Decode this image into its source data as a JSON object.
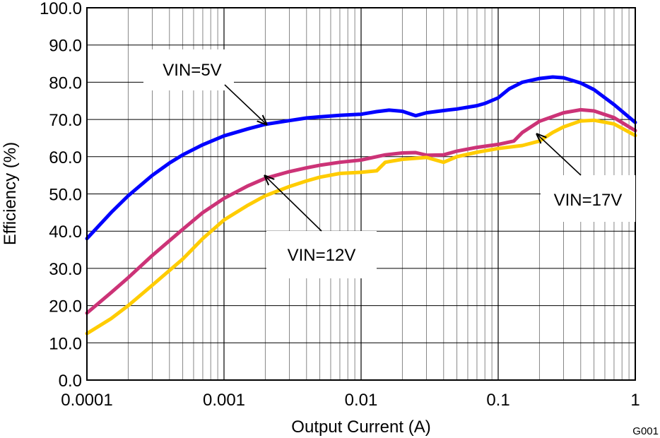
{
  "chart_data": {
    "type": "line",
    "title": "",
    "xlabel": "Output Current (A)",
    "ylabel": "Efficiency (%)",
    "xscale": "log",
    "xlim": [
      0.0001,
      1
    ],
    "ylim": [
      0,
      100
    ],
    "grid": true,
    "x_tick_labels": [
      "0.0001",
      "0.001",
      "0.01",
      "0.1",
      "1"
    ],
    "y_tick_labels": [
      "0.0",
      "10.0",
      "20.0",
      "30.0",
      "40.0",
      "50.0",
      "60.0",
      "70.0",
      "80.0",
      "90.0",
      "100.0"
    ],
    "figure_id": "G001",
    "series": [
      {
        "name": "VIN=5V",
        "color": "#0000ff",
        "points": [
          [
            0.0001,
            38
          ],
          [
            0.00015,
            45
          ],
          [
            0.0002,
            49.5
          ],
          [
            0.0003,
            55
          ],
          [
            0.0004,
            58.3
          ],
          [
            0.0005,
            60.5
          ],
          [
            0.0007,
            63.2
          ],
          [
            0.001,
            65.6
          ],
          [
            0.0015,
            67.5
          ],
          [
            0.002,
            68.7
          ],
          [
            0.003,
            69.7
          ],
          [
            0.004,
            70.4
          ],
          [
            0.005,
            70.7
          ],
          [
            0.007,
            71.1
          ],
          [
            0.01,
            71.4
          ],
          [
            0.013,
            72.1
          ],
          [
            0.016,
            72.5
          ],
          [
            0.02,
            72.2
          ],
          [
            0.025,
            71
          ],
          [
            0.03,
            71.8
          ],
          [
            0.04,
            72.4
          ],
          [
            0.05,
            72.8
          ],
          [
            0.07,
            73.7
          ],
          [
            0.08,
            74.3
          ],
          [
            0.1,
            75.8
          ],
          [
            0.12,
            78.2
          ],
          [
            0.15,
            80
          ],
          [
            0.2,
            81
          ],
          [
            0.25,
            81.4
          ],
          [
            0.3,
            81.2
          ],
          [
            0.4,
            79.8
          ],
          [
            0.5,
            78
          ],
          [
            0.7,
            74
          ],
          [
            1,
            69.2
          ]
        ]
      },
      {
        "name": "VIN=12V",
        "color": "#cc3377",
        "points": [
          [
            0.0001,
            18
          ],
          [
            0.00015,
            23.5
          ],
          [
            0.0002,
            27.5
          ],
          [
            0.0003,
            33.5
          ],
          [
            0.0005,
            40.5
          ],
          [
            0.0007,
            45
          ],
          [
            0.001,
            48.8
          ],
          [
            0.0015,
            52.2
          ],
          [
            0.002,
            54.2
          ],
          [
            0.003,
            56
          ],
          [
            0.004,
            57
          ],
          [
            0.005,
            57.7
          ],
          [
            0.007,
            58.5
          ],
          [
            0.01,
            59.1
          ],
          [
            0.015,
            60.5
          ],
          [
            0.02,
            61
          ],
          [
            0.025,
            61.1
          ],
          [
            0.03,
            60.4
          ],
          [
            0.04,
            60.5
          ],
          [
            0.05,
            61.5
          ],
          [
            0.07,
            62.5
          ],
          [
            0.1,
            63.3
          ],
          [
            0.13,
            64.2
          ],
          [
            0.15,
            66.5
          ],
          [
            0.2,
            69.5
          ],
          [
            0.3,
            71.8
          ],
          [
            0.4,
            72.6
          ],
          [
            0.5,
            72.3
          ],
          [
            0.7,
            70.5
          ],
          [
            1,
            67
          ]
        ]
      },
      {
        "name": "VIN=17V",
        "color": "#ffcc00",
        "points": [
          [
            0.0001,
            12.5
          ],
          [
            0.00015,
            16.5
          ],
          [
            0.0002,
            20
          ],
          [
            0.0003,
            25.5
          ],
          [
            0.0005,
            32.5
          ],
          [
            0.0007,
            38
          ],
          [
            0.001,
            43
          ],
          [
            0.0015,
            47
          ],
          [
            0.002,
            49.5
          ],
          [
            0.003,
            52
          ],
          [
            0.004,
            53.5
          ],
          [
            0.005,
            54.5
          ],
          [
            0.007,
            55.5
          ],
          [
            0.01,
            55.8
          ],
          [
            0.013,
            56.2
          ],
          [
            0.015,
            58.5
          ],
          [
            0.02,
            59.3
          ],
          [
            0.03,
            59.8
          ],
          [
            0.04,
            58.5
          ],
          [
            0.05,
            60
          ],
          [
            0.07,
            61.2
          ],
          [
            0.1,
            62.2
          ],
          [
            0.15,
            63
          ],
          [
            0.2,
            64.2
          ],
          [
            0.25,
            66.5
          ],
          [
            0.3,
            68
          ],
          [
            0.4,
            69.6
          ],
          [
            0.5,
            69.8
          ],
          [
            0.7,
            68.8
          ],
          [
            1,
            65.7
          ]
        ]
      }
    ],
    "annotations": [
      {
        "label": "VIN=5V",
        "series": "VIN=5V"
      },
      {
        "label": "VIN=12V",
        "series": "VIN=12V"
      },
      {
        "label": "VIN=17V",
        "series": "VIN=17V"
      }
    ]
  }
}
